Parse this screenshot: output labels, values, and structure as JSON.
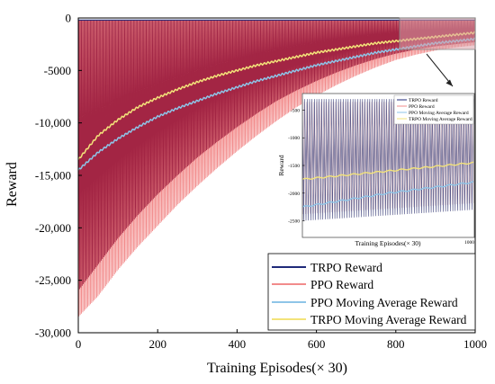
{
  "chart_data": {
    "type": "line",
    "xlabel": "Training Episodes(× 30)",
    "ylabel": "Reward",
    "xlim": [
      0,
      1000
    ],
    "ylim": [
      -30000,
      0
    ],
    "xticks": [
      "0",
      "200",
      "400",
      "600",
      "800",
      "1000"
    ],
    "yticks": [
      "0",
      "-5000",
      "-10,000",
      "-15,000",
      "-20,000",
      "-25,000",
      "-30,000"
    ],
    "legend_position": "bottom-right",
    "x": [
      0,
      50,
      100,
      150,
      200,
      250,
      300,
      350,
      400,
      450,
      500,
      550,
      600,
      650,
      700,
      750,
      800,
      850,
      900,
      950,
      1000
    ],
    "series": [
      {
        "name": "TRPO Reward",
        "color": "#1f2a7a",
        "upper": [
          -200,
          -200,
          -200,
          -200,
          -200,
          -200,
          -200,
          -200,
          -200,
          -200,
          -200,
          -200,
          -200,
          -200,
          -200,
          -200,
          -200,
          -200,
          -200,
          -200,
          -200
        ],
        "lower": [
          -26000,
          -23500,
          -21000,
          -18800,
          -16800,
          -15000,
          -13300,
          -11800,
          -10400,
          -9100,
          -7900,
          -6900,
          -6000,
          -5200,
          -4500,
          -3900,
          -3400,
          -3000,
          -2700,
          -2500,
          -2300
        ]
      },
      {
        "name": "PPO Reward",
        "color": "#f28b8b",
        "upper": [
          -200,
          -200,
          -200,
          -200,
          -200,
          -200,
          -200,
          -200,
          -200,
          -200,
          -200,
          -200,
          -200,
          -200,
          -200,
          -200,
          -200,
          -200,
          -200,
          -200,
          -200
        ],
        "lower": [
          -28500,
          -26500,
          -24000,
          -21800,
          -19800,
          -17800,
          -16000,
          -14300,
          -12700,
          -11200,
          -9800,
          -8500,
          -7400,
          -6400,
          -5500,
          -4700,
          -4000,
          -3500,
          -3100,
          -2800,
          -2600
        ]
      },
      {
        "name": "PPO Moving Average Reward",
        "color": "#8ec5e8",
        "values": [
          -14500,
          -12800,
          -11500,
          -10400,
          -9400,
          -8600,
          -7900,
          -7200,
          -6600,
          -6000,
          -5500,
          -5000,
          -4500,
          -4100,
          -3700,
          -3300,
          -3000,
          -2700,
          -2400,
          -2200,
          -2000
        ]
      },
      {
        "name": "TRPO Moving Average Reward",
        "color": "#f3e37a",
        "values": [
          -13500,
          -11200,
          -9700,
          -8500,
          -7600,
          -6800,
          -6100,
          -5500,
          -5000,
          -4500,
          -4100,
          -3700,
          -3300,
          -3000,
          -2700,
          -2400,
          -2200,
          -2000,
          -1800,
          -1600,
          -1400
        ]
      }
    ],
    "inset": {
      "source_xlim": [
        810,
        1000
      ],
      "source_ylim": [
        -3000,
        -100
      ],
      "ylabel": "Reward",
      "xlabel": "Training Episodes(× 30)",
      "yticks": [
        "-500",
        "-1000",
        "-1500",
        "-2000",
        "-2500"
      ],
      "xtick_right": "1000",
      "legend": [
        "TRPO Reward",
        "PPO Reward",
        "PPO Moving Average Reward",
        "TRPO Moving Average Reward"
      ],
      "ylim": [
        -2800,
        -200
      ],
      "ppo_ma": [
        -2250,
        -2200,
        -2150,
        -2100,
        -2050,
        -2000,
        -1960,
        -1920,
        -1880,
        -1840,
        -1800
      ],
      "trpo_ma": [
        -1750,
        -1720,
        -1690,
        -1660,
        -1630,
        -1600,
        -1570,
        -1540,
        -1510,
        -1480,
        -1450
      ],
      "band_upper": -300,
      "band_lower": [
        -2500,
        -2480,
        -2460,
        -2440,
        -2420,
        -2400,
        -2380,
        -2360,
        -2340,
        -2320,
        -2300
      ]
    }
  }
}
